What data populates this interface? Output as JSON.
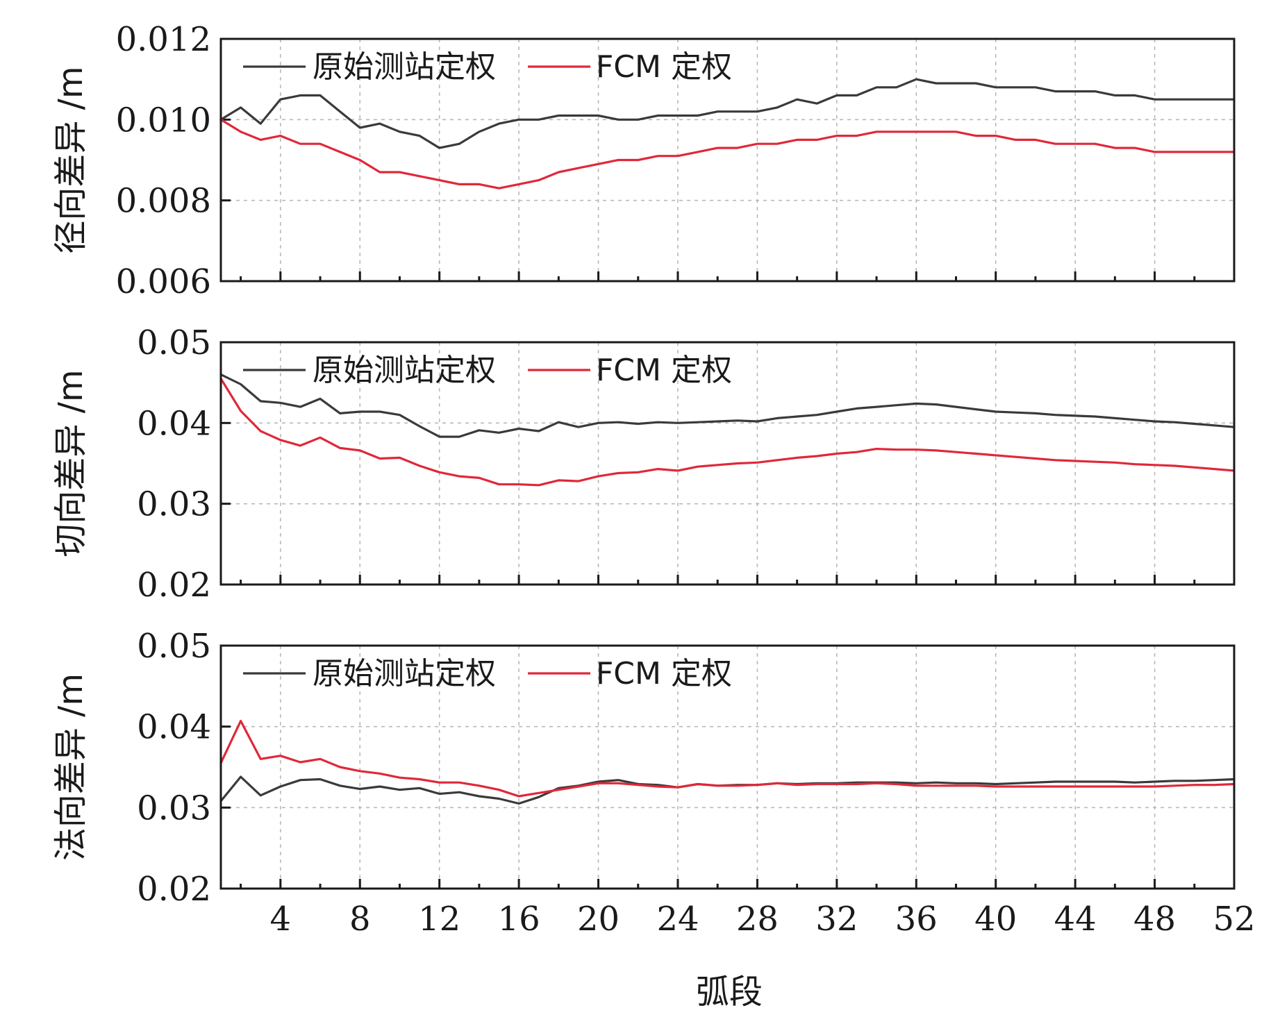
{
  "colors": {
    "original": "#3a3a3a",
    "fcm": "#e0283a",
    "grid": "#b8b8b8"
  },
  "xlabel": "弧段",
  "legend_labels": {
    "original": "原始测站定权",
    "fcm": "FCM 定权"
  },
  "chart_data": [
    {
      "type": "line",
      "ylabel": "径向差异 /m",
      "xlim": [
        1,
        52
      ],
      "ylim": [
        0.006,
        0.012
      ],
      "yticks": [
        "0.006",
        "0.008",
        "0.010",
        "0.012"
      ],
      "xticks": [
        "4",
        "8",
        "12",
        "16",
        "20",
        "24",
        "28",
        "32",
        "36",
        "40",
        "44",
        "48",
        "52"
      ],
      "legend_position": "top-left",
      "grid": true,
      "x": [
        1,
        2,
        3,
        4,
        5,
        6,
        7,
        8,
        9,
        10,
        11,
        12,
        13,
        14,
        15,
        16,
        17,
        18,
        19,
        20,
        21,
        22,
        23,
        24,
        25,
        26,
        27,
        28,
        29,
        30,
        31,
        32,
        33,
        34,
        35,
        36,
        37,
        38,
        39,
        40,
        41,
        42,
        43,
        44,
        45,
        46,
        47,
        48,
        49,
        50,
        51,
        52
      ],
      "series": [
        {
          "name": "原始测站定权",
          "values": [
            0.01,
            0.0103,
            0.0099,
            0.0105,
            0.0106,
            0.0106,
            0.0102,
            0.0098,
            0.0099,
            0.0097,
            0.0096,
            0.0093,
            0.0094,
            0.0097,
            0.0099,
            0.01,
            0.01,
            0.0101,
            0.0101,
            0.0101,
            0.01,
            0.01,
            0.0101,
            0.0101,
            0.0101,
            0.0102,
            0.0102,
            0.0102,
            0.0103,
            0.0105,
            0.0104,
            0.0106,
            0.0106,
            0.0108,
            0.0108,
            0.011,
            0.0109,
            0.0109,
            0.0109,
            0.0108,
            0.0108,
            0.0108,
            0.0107,
            0.0107,
            0.0107,
            0.0106,
            0.0106,
            0.0105,
            0.0105,
            0.0105,
            0.0105,
            0.0105
          ]
        },
        {
          "name": "FCM 定权",
          "values": [
            0.01,
            0.0097,
            0.0095,
            0.0096,
            0.0094,
            0.0094,
            0.0092,
            0.009,
            0.0087,
            0.0087,
            0.0086,
            0.0085,
            0.0084,
            0.0084,
            0.0083,
            0.0084,
            0.0085,
            0.0087,
            0.0088,
            0.0089,
            0.009,
            0.009,
            0.0091,
            0.0091,
            0.0092,
            0.0093,
            0.0093,
            0.0094,
            0.0094,
            0.0095,
            0.0095,
            0.0096,
            0.0096,
            0.0097,
            0.0097,
            0.0097,
            0.0097,
            0.0097,
            0.0096,
            0.0096,
            0.0095,
            0.0095,
            0.0094,
            0.0094,
            0.0094,
            0.0093,
            0.0093,
            0.0092,
            0.0092,
            0.0092,
            0.0092,
            0.0092
          ]
        }
      ]
    },
    {
      "type": "line",
      "ylabel": "切向差异 /m",
      "xlim": [
        1,
        52
      ],
      "ylim": [
        0.02,
        0.05
      ],
      "yticks": [
        "0.02",
        "0.03",
        "0.04",
        "0.05"
      ],
      "xticks": [
        "4",
        "8",
        "12",
        "16",
        "20",
        "24",
        "28",
        "32",
        "36",
        "40",
        "44",
        "48",
        "52"
      ],
      "legend_position": "top-left",
      "grid": true,
      "x": [
        1,
        2,
        3,
        4,
        5,
        6,
        7,
        8,
        9,
        10,
        11,
        12,
        13,
        14,
        15,
        16,
        17,
        18,
        19,
        20,
        21,
        22,
        23,
        24,
        25,
        26,
        27,
        28,
        29,
        30,
        31,
        32,
        33,
        34,
        35,
        36,
        37,
        38,
        39,
        40,
        41,
        42,
        43,
        44,
        45,
        46,
        47,
        48,
        49,
        50,
        51,
        52
      ],
      "series": [
        {
          "name": "原始测站定权",
          "values": [
            0.046,
            0.0448,
            0.0427,
            0.0425,
            0.042,
            0.043,
            0.0412,
            0.0414,
            0.0414,
            0.041,
            0.0396,
            0.0383,
            0.0383,
            0.0391,
            0.0388,
            0.0393,
            0.039,
            0.0401,
            0.0395,
            0.04,
            0.0401,
            0.0399,
            0.0401,
            0.04,
            0.0401,
            0.0402,
            0.0403,
            0.0402,
            0.0406,
            0.0408,
            0.041,
            0.0414,
            0.0418,
            0.042,
            0.0422,
            0.0424,
            0.0423,
            0.042,
            0.0417,
            0.0414,
            0.0413,
            0.0412,
            0.041,
            0.0409,
            0.0408,
            0.0406,
            0.0404,
            0.0402,
            0.0401,
            0.0399,
            0.0397,
            0.0395
          ]
        },
        {
          "name": "FCM 定权",
          "values": [
            0.0455,
            0.0415,
            0.039,
            0.0379,
            0.0372,
            0.0382,
            0.0369,
            0.0366,
            0.0356,
            0.0357,
            0.0347,
            0.0339,
            0.0334,
            0.0332,
            0.0324,
            0.0324,
            0.0323,
            0.0329,
            0.0328,
            0.0334,
            0.0338,
            0.0339,
            0.0343,
            0.0341,
            0.0346,
            0.0348,
            0.035,
            0.0351,
            0.0354,
            0.0357,
            0.0359,
            0.0362,
            0.0364,
            0.0368,
            0.0367,
            0.0367,
            0.0366,
            0.0364,
            0.0362,
            0.036,
            0.0358,
            0.0356,
            0.0354,
            0.0353,
            0.0352,
            0.0351,
            0.0349,
            0.0348,
            0.0347,
            0.0345,
            0.0343,
            0.0341
          ]
        }
      ]
    },
    {
      "type": "line",
      "ylabel": "法向差异 /m",
      "xlim": [
        1,
        52
      ],
      "ylim": [
        0.02,
        0.05
      ],
      "yticks": [
        "0.02",
        "0.03",
        "0.04",
        "0.05"
      ],
      "xticks": [
        "4",
        "8",
        "12",
        "16",
        "20",
        "24",
        "28",
        "32",
        "36",
        "40",
        "44",
        "48",
        "52"
      ],
      "legend_position": "top-left",
      "grid": true,
      "x": [
        1,
        2,
        3,
        4,
        5,
        6,
        7,
        8,
        9,
        10,
        11,
        12,
        13,
        14,
        15,
        16,
        17,
        18,
        19,
        20,
        21,
        22,
        23,
        24,
        25,
        26,
        27,
        28,
        29,
        30,
        31,
        32,
        33,
        34,
        35,
        36,
        37,
        38,
        39,
        40,
        41,
        42,
        43,
        44,
        45,
        46,
        47,
        48,
        49,
        50,
        51,
        52
      ],
      "series": [
        {
          "name": "原始测站定权",
          "values": [
            0.0308,
            0.0338,
            0.0315,
            0.0326,
            0.0334,
            0.0335,
            0.0327,
            0.0323,
            0.0326,
            0.0322,
            0.0324,
            0.0317,
            0.0319,
            0.0314,
            0.0311,
            0.0305,
            0.0313,
            0.0324,
            0.0327,
            0.0332,
            0.0334,
            0.0329,
            0.0328,
            0.0325,
            0.0329,
            0.0327,
            0.0328,
            0.0328,
            0.033,
            0.0329,
            0.033,
            0.033,
            0.0331,
            0.0331,
            0.0331,
            0.033,
            0.0331,
            0.033,
            0.033,
            0.0329,
            0.033,
            0.0331,
            0.0332,
            0.0332,
            0.0332,
            0.0332,
            0.0331,
            0.0332,
            0.0333,
            0.0333,
            0.0334,
            0.0335
          ]
        },
        {
          "name": "FCM 定权",
          "values": [
            0.0355,
            0.0407,
            0.036,
            0.0364,
            0.0356,
            0.036,
            0.035,
            0.0345,
            0.0342,
            0.0337,
            0.0335,
            0.0331,
            0.0331,
            0.0327,
            0.0322,
            0.0314,
            0.0318,
            0.0322,
            0.0326,
            0.033,
            0.033,
            0.0328,
            0.0326,
            0.0325,
            0.0329,
            0.0327,
            0.0327,
            0.0328,
            0.033,
            0.0328,
            0.0329,
            0.0329,
            0.0329,
            0.033,
            0.0329,
            0.0327,
            0.0327,
            0.0327,
            0.0327,
            0.0326,
            0.0326,
            0.0326,
            0.0326,
            0.0326,
            0.0326,
            0.0326,
            0.0326,
            0.0326,
            0.0327,
            0.0328,
            0.0328,
            0.0329
          ]
        }
      ]
    }
  ]
}
